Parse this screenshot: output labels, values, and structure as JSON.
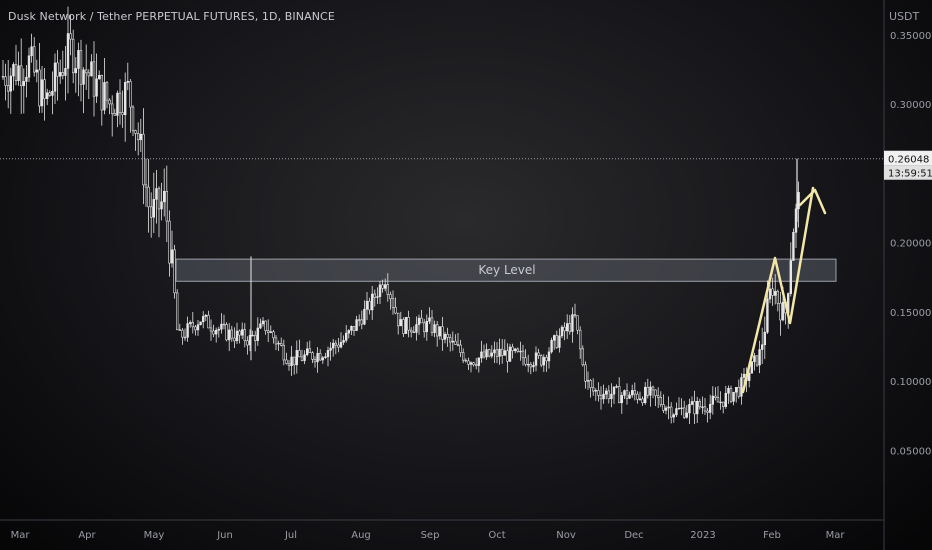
{
  "header": {
    "title": "Dusk Network / Tether PERPETUAL FUTURES, 1D, BINANCE",
    "unit": "USDT"
  },
  "price_tag": {
    "value": "0.26048",
    "countdown": "13:59:51"
  },
  "annotation": {
    "key_level_label": "Key Level"
  },
  "colors": {
    "candle": "#e6e6e6",
    "overlay": "#f2e7a8",
    "zone_fill": "#5a5d66",
    "zone_stroke": "#9ea1aa",
    "axis_text": "#9a9da6",
    "price_tag_bg": "#f0f0f0",
    "price_tag_text": "#111111"
  },
  "chart_data": {
    "type": "candlestick",
    "title": "Dusk Network / Tether PERPETUAL FUTURES, 1D, BINANCE",
    "ylabel": "USDT",
    "ylim": [
      0.02,
      0.36
    ],
    "y_ticks": [
      0.35,
      0.3,
      0.2,
      0.15,
      0.1,
      0.05
    ],
    "y_tick_labels": [
      "0.35000",
      "0.30000",
      "0.20000",
      "0.15000",
      "0.10000",
      "0.05000"
    ],
    "x_ticks": [
      "Mar",
      "Apr",
      "May",
      "Jun",
      "Jul",
      "Aug",
      "Sep",
      "Oct",
      "Nov",
      "Dec",
      "2023",
      "Feb",
      "Mar"
    ],
    "last_price": 0.26048,
    "key_level_zone": [
      0.172,
      0.188
    ],
    "close_path": [
      {
        "month": "Mar",
        "price": 0.32
      },
      {
        "month": "Apr",
        "price": 0.33
      },
      {
        "month": "May",
        "price": 0.24
      },
      {
        "month": "May",
        "price": 0.13
      },
      {
        "month": "Jun",
        "price": 0.135
      },
      {
        "month": "Jul",
        "price": 0.125
      },
      {
        "month": "Aug",
        "price": 0.17
      },
      {
        "month": "Sep",
        "price": 0.14
      },
      {
        "month": "Oct",
        "price": 0.125
      },
      {
        "month": "Nov",
        "price": 0.145
      },
      {
        "month": "Nov",
        "price": 0.092
      },
      {
        "month": "Dec",
        "price": 0.085
      },
      {
        "month": "2023",
        "price": 0.083
      },
      {
        "month": "2023",
        "price": 0.095
      },
      {
        "month": "Feb",
        "price": 0.14
      },
      {
        "month": "Feb",
        "price": 0.235
      }
    ]
  }
}
